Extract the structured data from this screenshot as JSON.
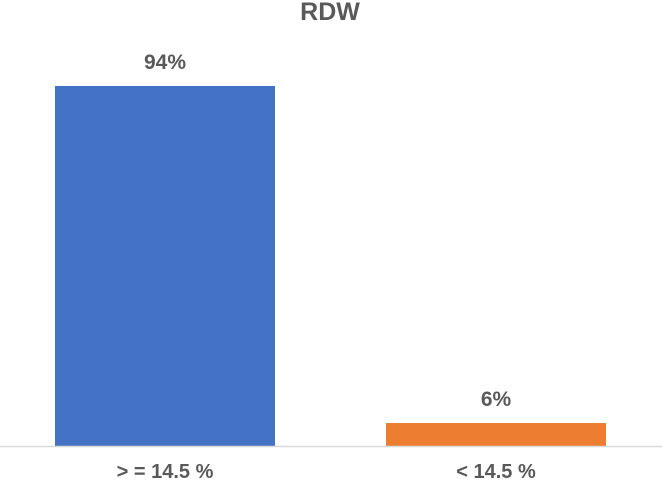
{
  "chart_data": {
    "type": "bar",
    "title": "RDW",
    "xlabel": "",
    "ylabel": "",
    "categories": [
      "> = 14.5 %",
      "< 14.5 %"
    ],
    "values": [
      94,
      6
    ],
    "data_labels": [
      "94%",
      "6%"
    ],
    "ylim": [
      0,
      100
    ],
    "grid": false,
    "legend": "none",
    "colors": [
      "#4472C4",
      "#ED7D31"
    ],
    "axis_color": "#D9D9D9",
    "text_color": "#595959"
  }
}
